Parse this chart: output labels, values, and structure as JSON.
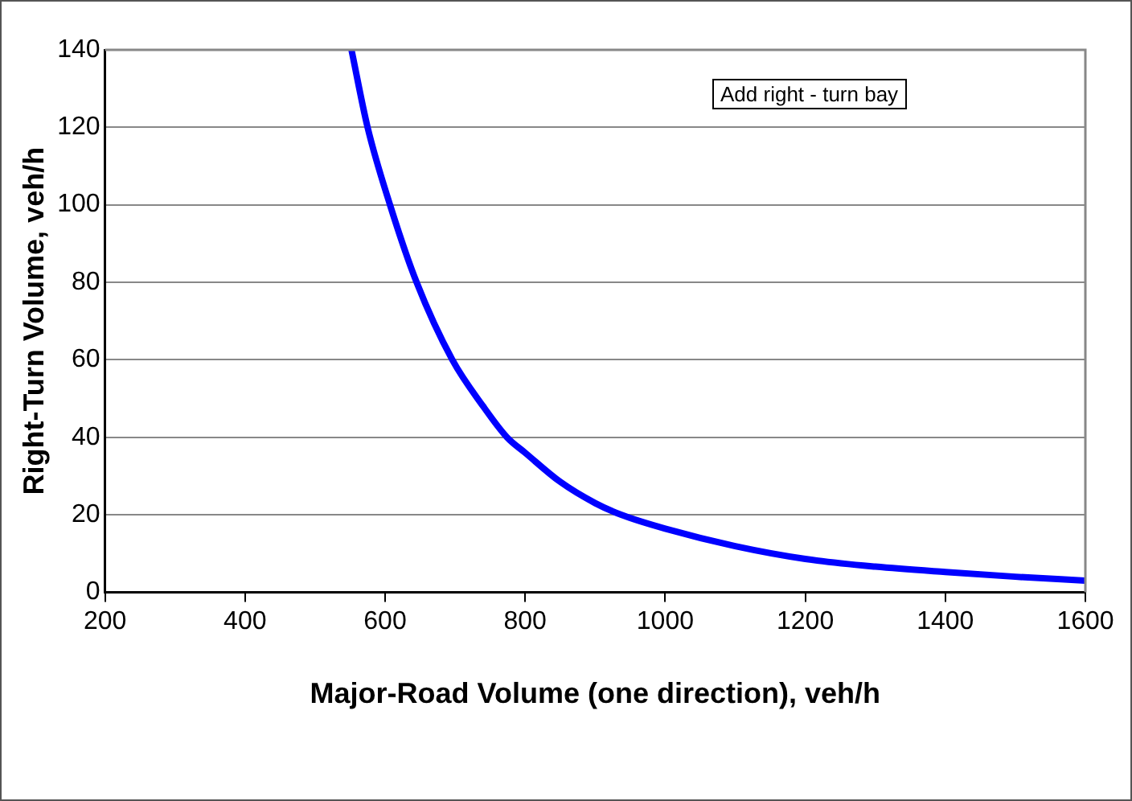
{
  "chart_data": {
    "type": "line",
    "xlabel": "Major-Road Volume (one direction), veh/h",
    "ylabel": "Right-Turn Volume, veh/h",
    "annotations": [
      "Add right - turn bay"
    ],
    "x": [
      552,
      575,
      607,
      645,
      696,
      740,
      774,
      800,
      850,
      900,
      937,
      1000,
      1100,
      1200,
      1300,
      1400,
      1500,
      1600
    ],
    "series": [
      {
        "color": "#0000ff",
        "values": [
          140,
          120,
          100,
          80,
          60,
          48,
          40,
          36,
          28.5,
          23,
          20,
          16.4,
          11.9,
          8.6,
          6.6,
          5.2,
          4,
          3
        ]
      }
    ],
    "xlim": [
      200,
      1600
    ],
    "xticks": [
      200,
      400,
      600,
      800,
      1000,
      1200,
      1400,
      1600
    ],
    "ylim": [
      0,
      140
    ],
    "yticks": [
      0,
      20,
      40,
      60,
      80,
      100,
      120,
      140
    ],
    "grid": "y",
    "legend": false,
    "marker": "none",
    "line_style": "solid"
  }
}
